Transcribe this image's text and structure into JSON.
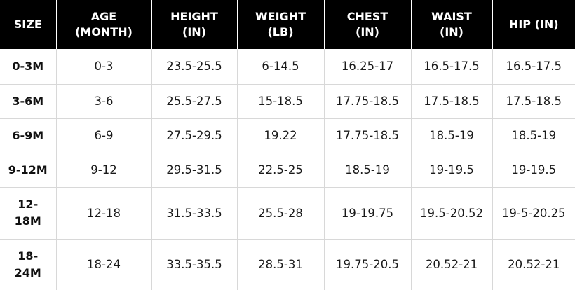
{
  "header": {
    "size": [
      "SIZE"
    ],
    "age": [
      "AGE",
      "(MONTH)"
    ],
    "height": [
      "HEIGHT",
      "(IN)"
    ],
    "weight": [
      "WEIGHT",
      "(LB)"
    ],
    "chest": [
      "CHEST",
      "(IN)"
    ],
    "waist": [
      "WAISt",
      "(IN)"
    ],
    "hip": [
      "HIP (IN)"
    ]
  },
  "rows": [
    {
      "size": [
        "0-3M"
      ],
      "age": "0-3",
      "height": "23.5-25.5",
      "weight": "6-14.5",
      "chest": "16.25-17",
      "waist": "16.5-17.5",
      "hip": "16.5-17.5"
    },
    {
      "size": [
        "3-6M"
      ],
      "age": "3-6",
      "height": "25.5-27.5",
      "weight": "15-18.5",
      "chest": "17.75-18.5",
      "waist": "17.5-18.5",
      "hip": "17.5-18.5"
    },
    {
      "size": [
        "6-9M"
      ],
      "age": "6-9",
      "height": "27.5-29.5",
      "weight": "19.22",
      "chest": "17.75-18.5",
      "waist": "18.5-19",
      "hip": "18.5-19"
    },
    {
      "size": [
        "9-12M"
      ],
      "age": "9-12",
      "height": "29.5-31.5",
      "weight": "22.5-25",
      "chest": "18.5-19",
      "waist": "19-19.5",
      "hip": "19-19.5"
    },
    {
      "size": [
        "12-",
        "18M"
      ],
      "age": "12-18",
      "height": "31.5-33.5",
      "weight": "25.5-28",
      "chest": "19-19.75",
      "waist": "19.5-20.52",
      "hip": "19-5-20.25"
    },
    {
      "size": [
        "18-",
        "24M"
      ],
      "age": "18-24",
      "height": "33.5-35.5",
      "weight": "28.5-31",
      "chest": "19.75-20.5",
      "waist": "20.52-21",
      "hip": "20.52-21"
    }
  ]
}
